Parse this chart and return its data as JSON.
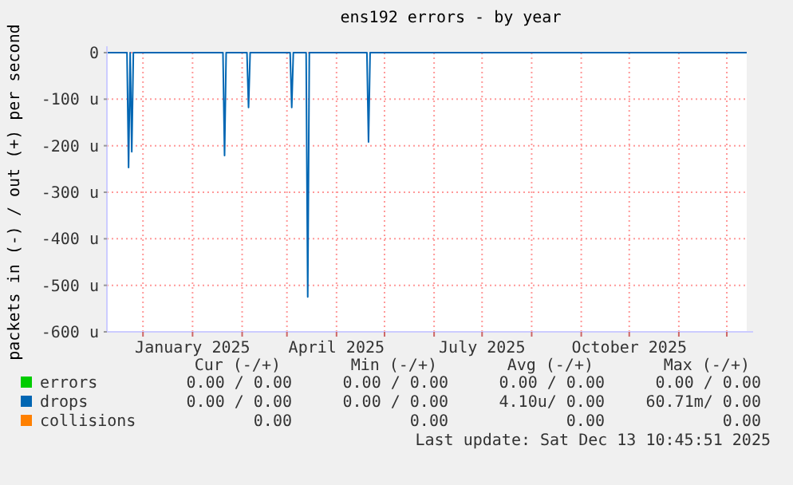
{
  "chart_data": {
    "type": "line",
    "title": "ens192 errors - by year",
    "ylabel": "packets in (-) / out (+) per second",
    "xlim": [
      "2024-11-08T10:45",
      "2025-12-13T10:45"
    ],
    "xticks": [
      {
        "value": "2024-12-01",
        "label": null
      },
      {
        "value": "2025-01-01",
        "label": "January 2025"
      },
      {
        "value": "2025-02-01",
        "label": null
      },
      {
        "value": "2025-03-01",
        "label": null
      },
      {
        "value": "2025-04-01",
        "label": "April 2025"
      },
      {
        "value": "2025-05-01",
        "label": null
      },
      {
        "value": "2025-06-01",
        "label": null
      },
      {
        "value": "2025-07-01",
        "label": "July 2025"
      },
      {
        "value": "2025-08-01",
        "label": null
      },
      {
        "value": "2025-09-01",
        "label": null
      },
      {
        "value": "2025-10-01",
        "label": "October 2025"
      },
      {
        "value": "2025-11-01",
        "label": null
      },
      {
        "value": "2025-12-01",
        "label": null
      }
    ],
    "ylim": [
      -600,
      0
    ],
    "yticks": [
      {
        "value": -600,
        "label": "-600 u"
      },
      {
        "value": -500,
        "label": "-500 u"
      },
      {
        "value": -400,
        "label": "-400 u"
      },
      {
        "value": -300,
        "label": "-300 u"
      },
      {
        "value": -200,
        "label": "-200 u"
      },
      {
        "value": -100,
        "label": "-100 u"
      },
      0
    ],
    "grid": true,
    "legend": "bottom",
    "line_style": "solid",
    "series": [
      {
        "name": "errors",
        "color": "#00cc00"
      },
      {
        "name": "drops",
        "color": "#0066b3",
        "x": [
          "2024-11-08T10:45",
          "2024-11-21",
          "2024-11-22",
          "2024-11-23",
          "2024-11-24",
          "2024-11-25",
          "2025-01-20",
          "2025-01-21",
          "2025-01-22",
          "2025-02-04",
          "2025-02-05",
          "2025-02-06",
          "2025-03-03",
          "2025-03-04",
          "2025-03-05",
          "2025-03-13",
          "2025-03-14",
          "2025-03-15",
          "2025-04-20",
          "2025-04-21",
          "2025-04-22",
          "2025-12-13T10:45"
        ],
        "values": [
          0,
          0,
          -247,
          0,
          -213,
          0,
          0,
          -221,
          0,
          0,
          -118,
          0,
          0,
          -118,
          0,
          0,
          -525,
          0,
          0,
          -192,
          0,
          0
        ]
      },
      {
        "name": "collisions",
        "color": "#ff8000"
      }
    ],
    "annotations": [
      "Cur (-/+)",
      "Min (-/+)",
      "Avg (-/+)",
      "Max (-/+)",
      "0.00 / 0.00",
      "0.00 / 0.00",
      "0.00 / 0.00",
      "0.00 / 0.00",
      "0.00 / 0.00",
      "0.00 / 0.00",
      "4.10u/ 0.00",
      "60.71m/ 0.00",
      "0.00",
      "0.00",
      "0.00",
      "0.00",
      "Last update: Sat Dec 13 10:45:51 2025"
    ]
  }
}
